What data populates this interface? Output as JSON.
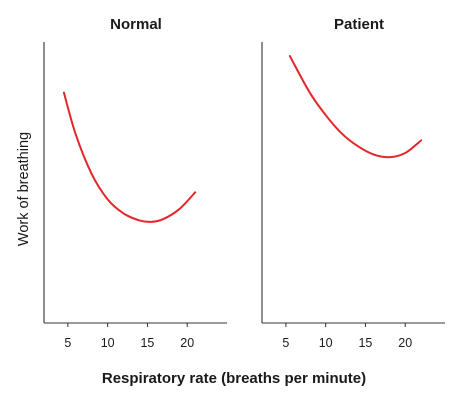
{
  "figure": {
    "shared_xlabel": "Respiratory rate (breaths per minute)",
    "shared_ylabel": "Work of breathing"
  },
  "colors": {
    "curve": "#e3262b",
    "axis": "#333333",
    "text": "#1a1a1a"
  },
  "chart_data": [
    {
      "type": "line",
      "title": "Normal",
      "xlabel": "Respiratory rate (breaths per minute)",
      "ylabel": "Work of breathing",
      "xlim": [
        2,
        25
      ],
      "ylim": [
        0,
        10
      ],
      "xticks": [
        5,
        10,
        15,
        20
      ],
      "yticks": [],
      "series": [
        {
          "x": [
            4.5,
            6,
            8,
            10,
            12,
            14,
            15.5,
            17,
            19,
            21
          ],
          "y": [
            8.2,
            6.7,
            5.3,
            4.4,
            3.9,
            3.65,
            3.6,
            3.7,
            4.05,
            4.65
          ]
        }
      ]
    },
    {
      "type": "line",
      "title": "Patient",
      "xlabel": "Respiratory rate (breaths per minute)",
      "ylabel": "Work of breathing",
      "xlim": [
        2,
        25
      ],
      "ylim": [
        0,
        10
      ],
      "xticks": [
        5,
        10,
        15,
        20
      ],
      "yticks": [],
      "series": [
        {
          "x": [
            5.5,
            8,
            10,
            12,
            14,
            16,
            18,
            20,
            22
          ],
          "y": [
            9.5,
            8.2,
            7.4,
            6.75,
            6.3,
            6.0,
            5.9,
            6.05,
            6.5
          ]
        }
      ]
    }
  ]
}
